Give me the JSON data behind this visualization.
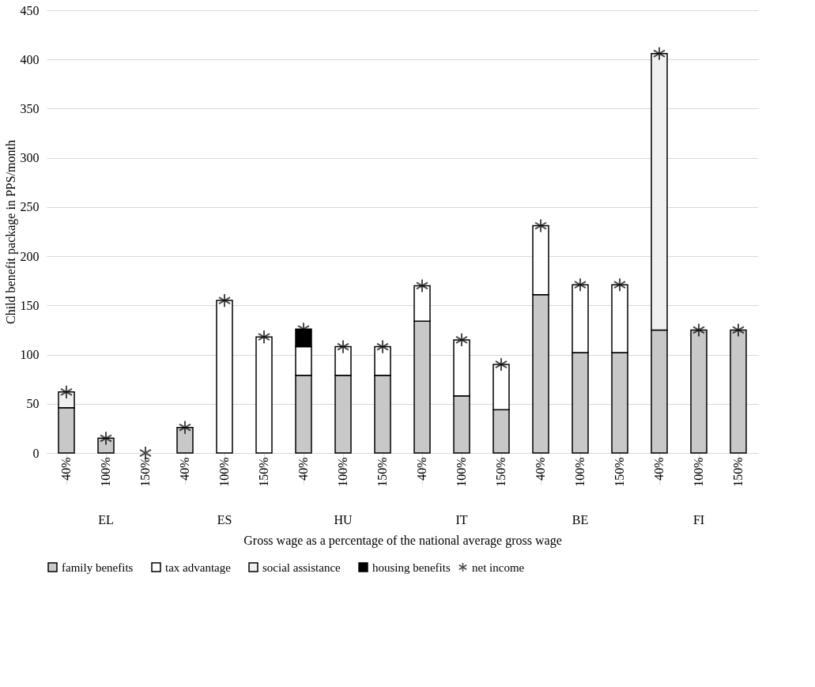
{
  "chart_data": {
    "type": "bar",
    "stacked": true,
    "ylabel": "Child benefit package in PPS/month",
    "xlabel": "Gross wage as a percentage of the national average gross wage",
    "categories": [
      "40%",
      "100%",
      "150%",
      "40%",
      "100%",
      "150%",
      "40%",
      "100%",
      "150%",
      "40%",
      "100%",
      "150%",
      "40%",
      "100%",
      "150%",
      "40%",
      "100%",
      "150%"
    ],
    "annotations": [
      "EL",
      "ES",
      "HU",
      "IT",
      "BE",
      "FI"
    ],
    "series": [
      {
        "name": "family benefits",
        "color": "#c8c8c8",
        "values": [
          46,
          15,
          null,
          26,
          null,
          null,
          79,
          79,
          79,
          134,
          58,
          44,
          161,
          102,
          102,
          125,
          125,
          125
        ]
      },
      {
        "name": "tax advantage",
        "color": "#ffffff",
        "values": [
          null,
          null,
          null,
          null,
          155,
          118,
          29,
          29,
          29,
          36,
          57,
          46,
          70,
          69,
          69,
          null,
          null,
          null
        ]
      },
      {
        "name": "social assistance",
        "color": "#f0f0f0",
        "values": [
          16,
          null,
          null,
          null,
          null,
          null,
          null,
          null,
          null,
          null,
          null,
          null,
          null,
          null,
          null,
          281,
          null,
          null
        ]
      },
      {
        "name": "housing benefits",
        "color": "#000000",
        "values": [
          null,
          null,
          null,
          null,
          null,
          null,
          18,
          null,
          null,
          null,
          null,
          null,
          null,
          null,
          null,
          null,
          null,
          null
        ]
      },
      {
        "name": "net income",
        "type": "scatter",
        "color": "#000000",
        "values": [
          62,
          15,
          0,
          26,
          155,
          118,
          126,
          108,
          108,
          170,
          115,
          90,
          231,
          171,
          171,
          406,
          125,
          125
        ]
      }
    ],
    "ylim": [
      0,
      450
    ],
    "yticks": [
      0,
      50,
      100,
      150,
      200,
      250,
      300,
      350,
      400,
      450
    ],
    "grid": "y",
    "legend": "bottom",
    "marker": "cross"
  }
}
